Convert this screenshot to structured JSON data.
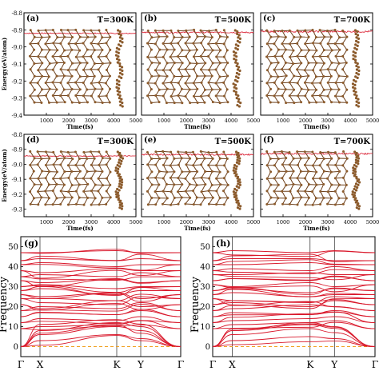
{
  "md_panels": [
    {
      "label": "(a)",
      "temperature": "T=300K",
      "energy_level": -8.92,
      "noise": 0.003
    },
    {
      "label": "(b)",
      "temperature": "T=500K",
      "energy_level": -8.915,
      "noise": 0.004
    },
    {
      "label": "(c)",
      "temperature": "T=700K",
      "energy_level": -8.91,
      "noise": 0.005
    },
    {
      "label": "(d)",
      "temperature": "T=300K",
      "energy_level": -8.945,
      "noise": 0.003
    },
    {
      "label": "(e)",
      "temperature": "T=500K",
      "energy_level": -8.935,
      "noise": 0.005
    },
    {
      "label": "(f)",
      "temperature": "T=700K",
      "energy_level": -8.93,
      "noise": 0.005
    }
  ],
  "md_axes": {
    "ylabel": "Energy(eV/atom)",
    "xlabel": "Time(fs)",
    "row1_yticks": [
      "-8.8",
      "-8.9",
      "-9.0",
      "-9.1",
      "-9.2",
      "-9.3",
      "-9.4"
    ],
    "row2_yticks": [
      "-8.8",
      "-8.9",
      "-9.0",
      "-9.1",
      "-9.2",
      "-9.3"
    ],
    "xticks": [
      "1000",
      "2000",
      "3000",
      "4000",
      "5000"
    ]
  },
  "phonon_panels": [
    {
      "label": "(g)"
    },
    {
      "label": "(h)"
    }
  ],
  "phonon_axes": {
    "ylabel": "Frequency",
    "yticks": [
      "0",
      "10",
      "20",
      "30",
      "40",
      "50"
    ],
    "kpoints": [
      "Γ",
      "X",
      "K",
      "Y",
      "Γ"
    ]
  },
  "colors": {
    "curve": "#d9182b",
    "dashed": "#f0a020",
    "atom": "#8b5a2b",
    "bond": "#6b3e1a"
  },
  "chart_data": [
    {
      "type": "line",
      "panel": "(a)",
      "title": "T=300K",
      "xlabel": "Time(fs)",
      "ylabel": "Energy(eV/atom)",
      "xlim": [
        0,
        5000
      ],
      "ylim": [
        -9.4,
        -8.8
      ],
      "series": [
        {
          "x": [
            0,
            1000,
            2000,
            3000,
            4000,
            5000
          ],
          "y": [
            -8.92,
            -8.92,
            -8.92,
            -8.92,
            -8.92,
            -8.92
          ]
        }
      ]
    },
    {
      "type": "line",
      "panel": "(b)",
      "title": "T=500K",
      "xlabel": "Time(fs)",
      "ylabel": "Energy(eV/atom)",
      "xlim": [
        0,
        5000
      ],
      "ylim": [
        -9.4,
        -8.8
      ],
      "series": [
        {
          "x": [
            0,
            1000,
            2000,
            3000,
            4000,
            5000
          ],
          "y": [
            -8.915,
            -8.915,
            -8.915,
            -8.915,
            -8.915,
            -8.915
          ]
        }
      ]
    },
    {
      "type": "line",
      "panel": "(c)",
      "title": "T=700K",
      "xlabel": "Time(fs)",
      "ylabel": "Energy(eV/atom)",
      "xlim": [
        0,
        5000
      ],
      "ylim": [
        -9.4,
        -8.8
      ],
      "series": [
        {
          "x": [
            0,
            1000,
            2000,
            3000,
            4000,
            5000
          ],
          "y": [
            -8.91,
            -8.91,
            -8.91,
            -8.91,
            -8.91,
            -8.91
          ]
        }
      ]
    },
    {
      "type": "line",
      "panel": "(d)",
      "title": "T=300K",
      "xlabel": "Time(fs)",
      "ylabel": "Energy(eV/atom)",
      "xlim": [
        0,
        5000
      ],
      "ylim": [
        -9.35,
        -8.8
      ],
      "series": [
        {
          "x": [
            0,
            1000,
            2000,
            3000,
            4000,
            5000
          ],
          "y": [
            -8.945,
            -8.945,
            -8.945,
            -8.945,
            -8.945,
            -8.945
          ]
        }
      ]
    },
    {
      "type": "line",
      "panel": "(e)",
      "title": "T=500K",
      "xlabel": "Time(fs)",
      "ylabel": "Energy(eV/atom)",
      "xlim": [
        0,
        5000
      ],
      "ylim": [
        -9.35,
        -8.8
      ],
      "series": [
        {
          "x": [
            0,
            1000,
            2000,
            3000,
            4000,
            5000
          ],
          "y": [
            -8.935,
            -8.935,
            -8.935,
            -8.935,
            -8.935,
            -8.935
          ]
        }
      ]
    },
    {
      "type": "line",
      "panel": "(f)",
      "title": "T=700K",
      "xlabel": "Time(fs)",
      "ylabel": "Energy(eV/atom)",
      "xlim": [
        0,
        5000
      ],
      "ylim": [
        -9.35,
        -8.8
      ],
      "series": [
        {
          "x": [
            0,
            1000,
            2000,
            3000,
            4000,
            5000
          ],
          "y": [
            -8.93,
            -8.93,
            -8.93,
            -8.93,
            -8.93,
            -8.93
          ]
        }
      ]
    },
    {
      "type": "line",
      "panel": "(g)",
      "ylabel": "Frequency",
      "xlabel": "",
      "ylim": [
        -5,
        55
      ],
      "x": [
        "Γ",
        "X",
        "K",
        "Y",
        "Γ"
      ],
      "series": [
        {
          "values": [
            0,
            3,
            6,
            4,
            0
          ]
        },
        {
          "values": [
            0,
            6,
            10,
            8,
            0
          ]
        },
        {
          "values": [
            0,
            8,
            12,
            10,
            0
          ]
        },
        {
          "values": [
            9,
            10,
            11,
            13,
            9
          ]
        },
        {
          "values": [
            12,
            14,
            13,
            15,
            12
          ]
        },
        {
          "values": [
            15,
            17,
            16,
            18,
            15
          ]
        },
        {
          "values": [
            18,
            20,
            19,
            22,
            18
          ]
        },
        {
          "values": [
            21,
            19,
            23,
            20,
            21
          ]
        },
        {
          "values": [
            24,
            22,
            21,
            25,
            24
          ]
        },
        {
          "values": [
            26,
            25,
            27,
            24,
            26
          ]
        },
        {
          "values": [
            28,
            29,
            26,
            28,
            28
          ]
        },
        {
          "values": [
            30,
            31,
            29,
            30,
            30
          ]
        },
        {
          "values": [
            33,
            32,
            34,
            32,
            33
          ]
        },
        {
          "values": [
            35,
            36,
            35,
            37,
            35
          ]
        },
        {
          "values": [
            38,
            37,
            39,
            38,
            38
          ]
        },
        {
          "values": [
            41,
            42,
            40,
            41,
            41
          ]
        },
        {
          "values": [
            43,
            44,
            43,
            44,
            43
          ]
        },
        {
          "values": [
            47,
            47,
            48,
            47,
            47
          ]
        }
      ]
    },
    {
      "type": "line",
      "panel": "(h)",
      "ylabel": "Frequency",
      "xlabel": "",
      "ylim": [
        -5,
        55
      ],
      "x": [
        "Γ",
        "X",
        "K",
        "Y",
        "Γ"
      ],
      "series": [
        {
          "values": [
            0,
            3,
            5,
            4,
            0
          ]
        },
        {
          "values": [
            0,
            6,
            9,
            7,
            0
          ]
        },
        {
          "values": [
            0,
            8,
            12,
            10,
            0
          ]
        },
        {
          "values": [
            9,
            11,
            12,
            13,
            9
          ]
        },
        {
          "values": [
            12,
            13,
            14,
            15,
            12
          ]
        },
        {
          "values": [
            15,
            17,
            16,
            18,
            15
          ]
        },
        {
          "values": [
            18,
            19,
            21,
            20,
            18
          ]
        },
        {
          "values": [
            21,
            22,
            20,
            23,
            21
          ]
        },
        {
          "values": [
            24,
            23,
            22,
            25,
            24
          ]
        },
        {
          "values": [
            26,
            27,
            25,
            26,
            26
          ]
        },
        {
          "values": [
            28,
            29,
            27,
            29,
            28
          ]
        },
        {
          "values": [
            31,
            30,
            32,
            30,
            31
          ]
        },
        {
          "values": [
            33,
            34,
            33,
            35,
            33
          ]
        },
        {
          "values": [
            36,
            36,
            37,
            36,
            36
          ]
        },
        {
          "values": [
            38,
            39,
            38,
            40,
            38
          ]
        },
        {
          "values": [
            41,
            41,
            42,
            41,
            41
          ]
        },
        {
          "values": [
            43,
            44,
            44,
            43,
            43
          ]
        },
        {
          "values": [
            47,
            48,
            47,
            48,
            47
          ]
        }
      ]
    }
  ]
}
